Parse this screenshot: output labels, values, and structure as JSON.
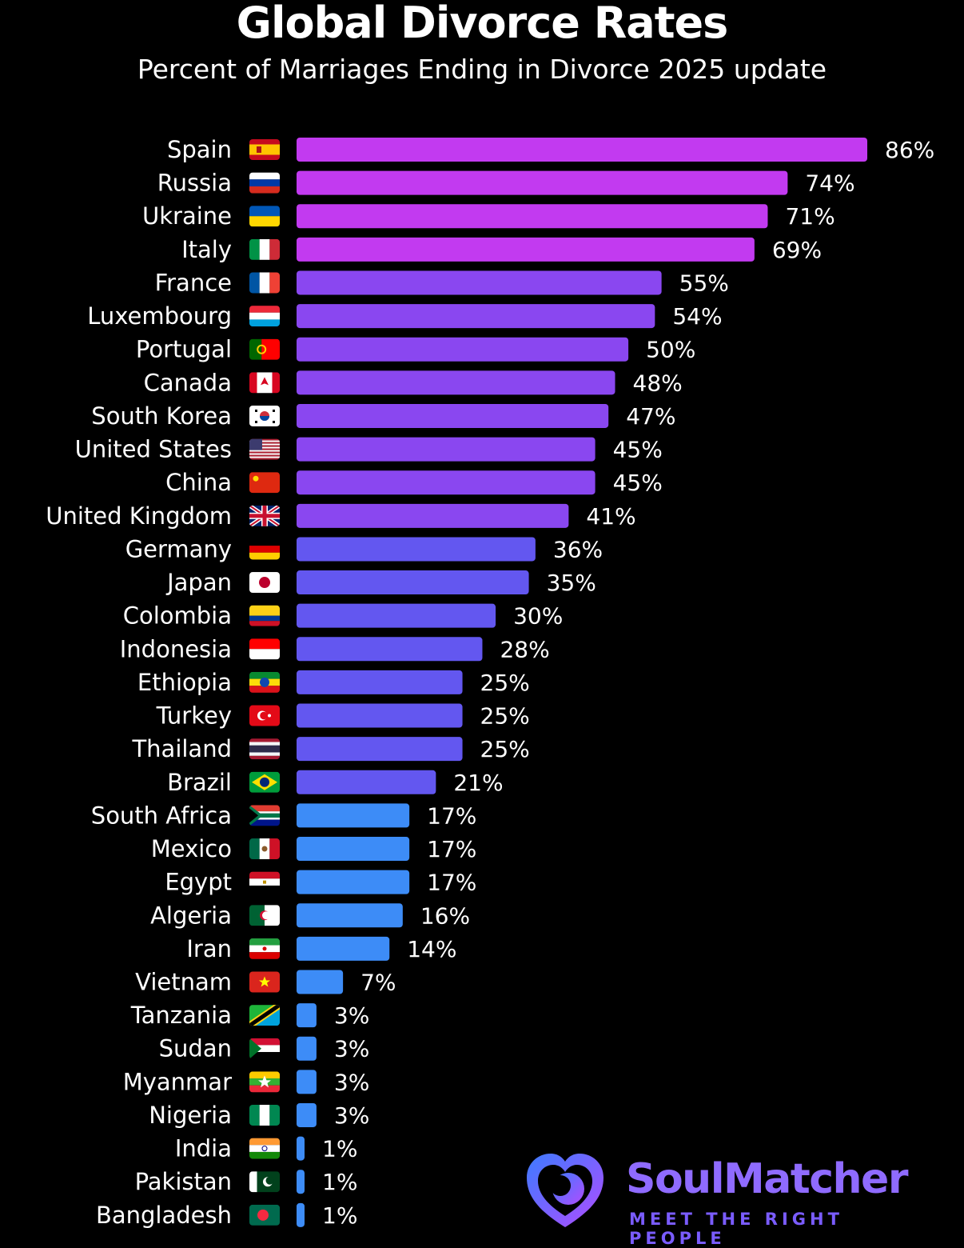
{
  "title": "Global Divorce Rates",
  "subtitle": "Percent of Marriages Ending in Divorce 2025 update",
  "brand": {
    "name": "SoulMatcher",
    "tagline": "MEET THE RIGHT PEOPLE",
    "colors": {
      "gradient_start": "#b14cff",
      "gradient_end": "#3d7bff"
    }
  },
  "colors": {
    "background": "#000000",
    "bar_magenta": "#c23af0",
    "bar_violet": "#8a47f0",
    "bar_indigo": "#6357f0",
    "bar_blue": "#3d8cf7"
  },
  "chart_data": {
    "type": "bar",
    "orientation": "horizontal",
    "unit": "%",
    "xlim": [
      0,
      86
    ],
    "grid": false,
    "legend": "none",
    "categories": [
      "Spain",
      "Russia",
      "Ukraine",
      "Italy",
      "France",
      "Luxembourg",
      "Portugal",
      "Canada",
      "South Korea",
      "United States",
      "China",
      "United Kingdom",
      "Germany",
      "Japan",
      "Colombia",
      "Indonesia",
      "Ethiopia",
      "Turkey",
      "Thailand",
      "Brazil",
      "South Africa",
      "Mexico",
      "Egypt",
      "Algeria",
      "Iran",
      "Vietnam",
      "Tanzania",
      "Sudan",
      "Myanmar",
      "Nigeria",
      "India",
      "Pakistan",
      "Bangladesh"
    ],
    "values": [
      86,
      74,
      71,
      69,
      55,
      54,
      50,
      48,
      47,
      45,
      45,
      41,
      36,
      35,
      30,
      28,
      25,
      25,
      25,
      21,
      17,
      17,
      17,
      16,
      14,
      7,
      3,
      3,
      3,
      3,
      1,
      1,
      1
    ],
    "value_labels": [
      "86%",
      "74%",
      "71%",
      "69%",
      "55%",
      "54%",
      "50%",
      "48%",
      "47%",
      "45%",
      "45%",
      "41%",
      "36%",
      "35%",
      "30%",
      "28%",
      "25%",
      "25%",
      "25%",
      "21%",
      "17%",
      "17%",
      "17%",
      "16%",
      "14%",
      "7%",
      "3%",
      "3%",
      "3%",
      "3%",
      "1%",
      "1%",
      "1%"
    ],
    "flags": [
      "spain-flag-icon",
      "russia-flag-icon",
      "ukraine-flag-icon",
      "italy-flag-icon",
      "france-flag-icon",
      "luxembourg-flag-icon",
      "portugal-flag-icon",
      "canada-flag-icon",
      "south-korea-flag-icon",
      "united-states-flag-icon",
      "china-flag-icon",
      "united-kingdom-flag-icon",
      "germany-flag-icon",
      "japan-flag-icon",
      "colombia-flag-icon",
      "indonesia-flag-icon",
      "ethiopia-flag-icon",
      "turkey-flag-icon",
      "thailand-flag-icon",
      "brazil-flag-icon",
      "south-africa-flag-icon",
      "mexico-flag-icon",
      "egypt-flag-icon",
      "algeria-flag-icon",
      "iran-flag-icon",
      "vietnam-flag-icon",
      "tanzania-flag-icon",
      "sudan-flag-icon",
      "myanmar-flag-icon",
      "nigeria-flag-icon",
      "india-flag-icon",
      "pakistan-flag-icon",
      "bangladesh-flag-icon"
    ]
  }
}
